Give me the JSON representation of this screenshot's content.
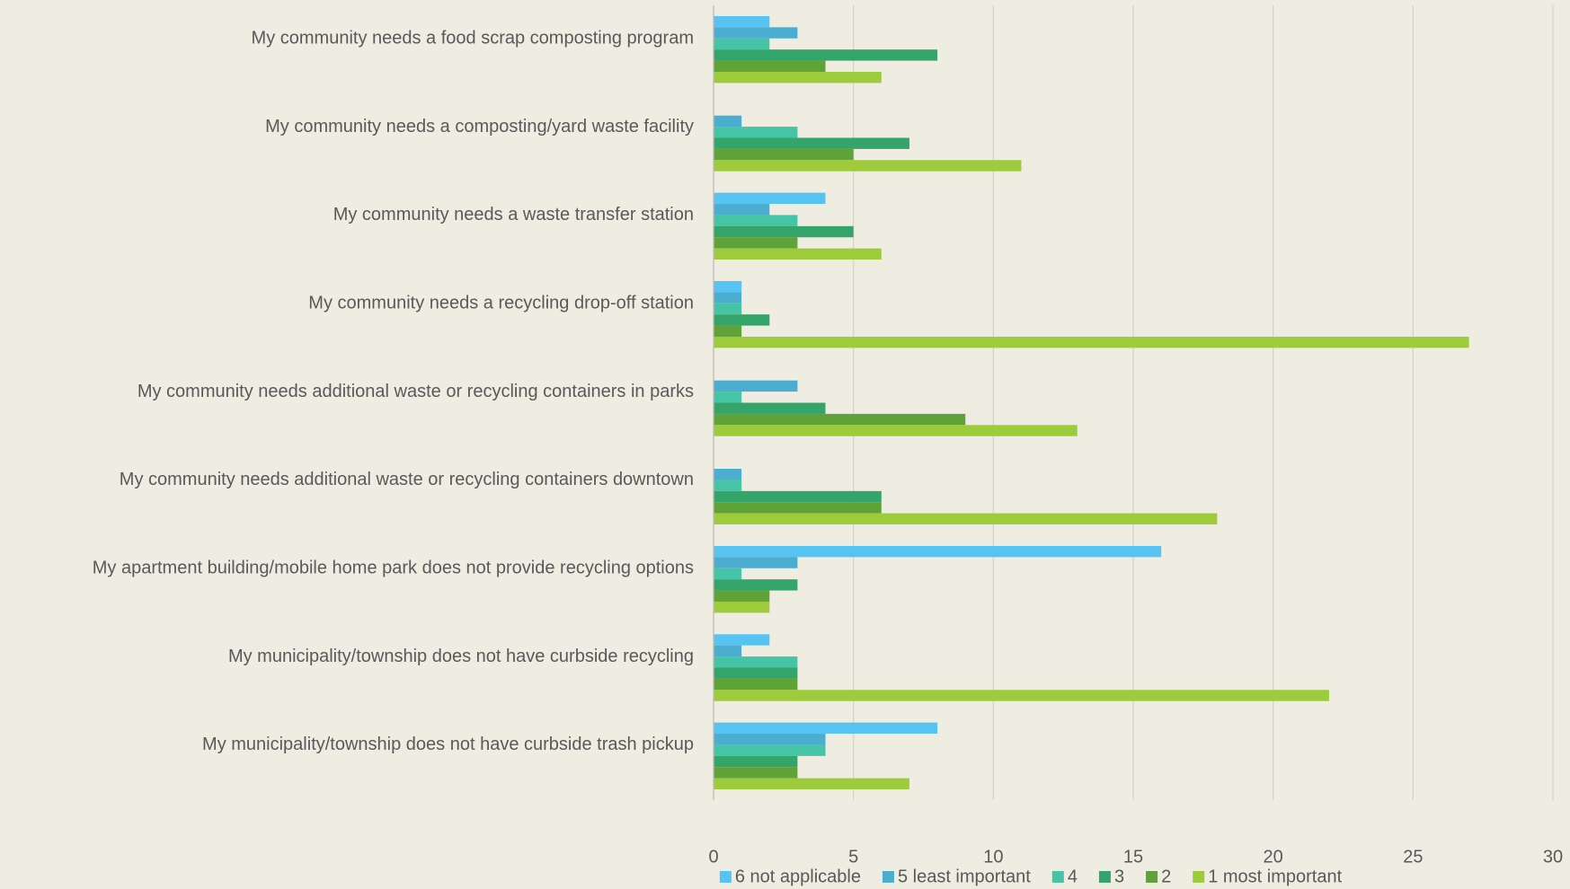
{
  "chart_data": {
    "type": "hbar",
    "categories": [
      "My community needs a food scrap composting program",
      "My community needs a composting/yard waste facility",
      "My community needs a waste transfer station",
      "My community needs a recycling drop-off station",
      "My community needs additional waste or recycling containers in parks",
      "My community needs additional waste or recycling containers downtown",
      "My apartment building/mobile home park does not provide recycling options",
      "My municipality/township does not have curbside recycling",
      "My municipality/township does not have curbside trash pickup"
    ],
    "series": [
      {
        "name": "6 not applicable",
        "color": "#56c3f2",
        "values": [
          2,
          0,
          4,
          1,
          0,
          0,
          16,
          2,
          8
        ]
      },
      {
        "name": "5 least important",
        "color": "#4baed0",
        "values": [
          3,
          1,
          2,
          1,
          3,
          1,
          3,
          1,
          4
        ]
      },
      {
        "name": "4",
        "color": "#46c4a6",
        "values": [
          2,
          3,
          3,
          1,
          1,
          1,
          1,
          3,
          4
        ]
      },
      {
        "name": "3",
        "color": "#35a46a",
        "values": [
          8,
          7,
          5,
          2,
          4,
          6,
          3,
          3,
          3
        ]
      },
      {
        "name": "2",
        "color": "#5fa237",
        "values": [
          4,
          5,
          3,
          1,
          9,
          6,
          2,
          3,
          3
        ]
      },
      {
        "name": "1 most important",
        "color": "#9dcb3c",
        "values": [
          6,
          11,
          6,
          27,
          13,
          18,
          2,
          22,
          7
        ]
      }
    ],
    "xlim": [
      0,
      30
    ],
    "xticks": [
      0,
      5,
      10,
      15,
      20,
      25,
      30
    ],
    "grid": true,
    "legend": "bottom"
  }
}
